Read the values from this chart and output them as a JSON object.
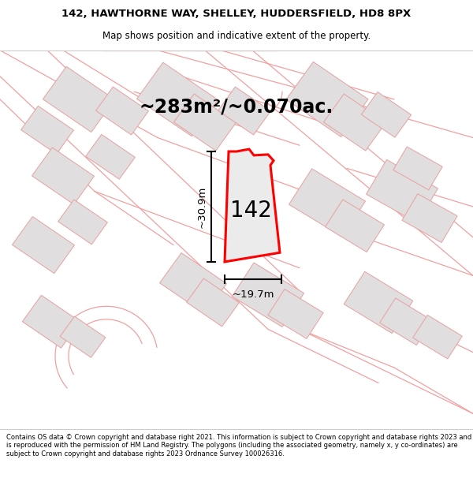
{
  "title_line1": "142, HAWTHORNE WAY, SHELLEY, HUDDERSFIELD, HD8 8PX",
  "title_line2": "Map shows position and indicative extent of the property.",
  "area_text": "~283m²/~0.070ac.",
  "label_142": "142",
  "dim_width": "~19.7m",
  "dim_height": "~30.9m",
  "footer_text": "Contains OS data © Crown copyright and database right 2021. This information is subject to Crown copyright and database rights 2023 and is reproduced with the permission of HM Land Registry. The polygons (including the associated geometry, namely x, y co-ordinates) are subject to Crown copyright and database rights 2023 Ordnance Survey 100026316.",
  "bg_color": "#f5f3f3",
  "map_bg": "#f5f3f3",
  "plot_fill": "#e8e6e6",
  "plot_stroke": "#ff0000",
  "road_color": "#f0a0a0",
  "building_fill": "#e0dede",
  "building_stroke": "#e8a0a0",
  "title_bg": "#ffffff",
  "footer_bg": "#ffffff"
}
